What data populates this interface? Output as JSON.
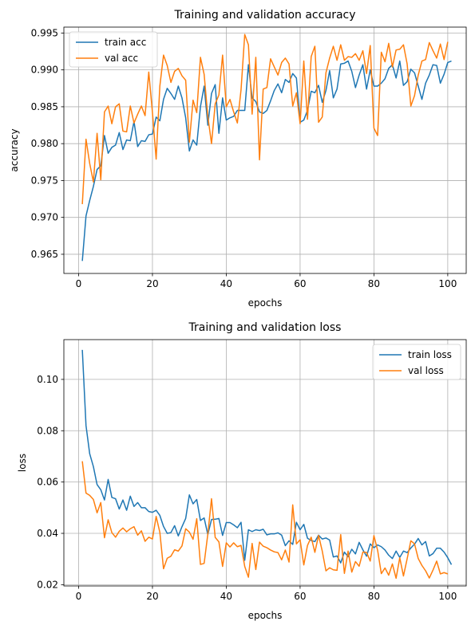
{
  "chart_data": [
    {
      "type": "line",
      "title": "Training and validation accuracy",
      "xlabel": "epochs",
      "ylabel": "accuracy",
      "xlim": [
        -4,
        105
      ],
      "ylim": [
        0.9624,
        0.9958
      ],
      "xticks": [
        0,
        20,
        40,
        60,
        80,
        100
      ],
      "yticks": [
        0.965,
        0.97,
        0.975,
        0.98,
        0.985,
        0.99,
        0.995
      ],
      "ytick_labels": [
        "0.965",
        "0.970",
        "0.975",
        "0.980",
        "0.985",
        "0.990",
        "0.995"
      ],
      "grid": true,
      "legend_position": "upper-left",
      "x_start": 1,
      "series": [
        {
          "name": "train acc",
          "color": "#1f77b4",
          "values": [
            0.9641,
            0.9702,
            0.9723,
            0.9742,
            0.9765,
            0.977,
            0.9811,
            0.9787,
            0.9795,
            0.9798,
            0.9815,
            0.9792,
            0.9805,
            0.9804,
            0.983,
            0.9796,
            0.9804,
            0.9803,
            0.9812,
            0.9813,
            0.9836,
            0.9831,
            0.986,
            0.9875,
            0.9868,
            0.986,
            0.9878,
            0.9862,
            0.9835,
            0.979,
            0.9805,
            0.9798,
            0.985,
            0.9878,
            0.9825,
            0.9868,
            0.988,
            0.9814,
            0.9862,
            0.9832,
            0.9835,
            0.9837,
            0.9845,
            0.9845,
            0.9845,
            0.9907,
            0.9862,
            0.9857,
            0.9843,
            0.9841,
            0.9845,
            0.9858,
            0.9872,
            0.9881,
            0.9869,
            0.9887,
            0.9883,
            0.9895,
            0.9889,
            0.9829,
            0.9832,
            0.9845,
            0.9871,
            0.9869,
            0.9879,
            0.9856,
            0.9872,
            0.9899,
            0.9862,
            0.9874,
            0.9908,
            0.9909,
            0.9912,
            0.9898,
            0.9876,
            0.9893,
            0.9907,
            0.9874,
            0.99,
            0.9878,
            0.9878,
            0.9882,
            0.9888,
            0.9902,
            0.9907,
            0.9889,
            0.9912,
            0.9879,
            0.9884,
            0.9901,
            0.9896,
            0.9878,
            0.986,
            0.9882,
            0.9893,
            0.9907,
            0.9906,
            0.9882,
            0.9894,
            0.991,
            0.9912
          ]
        },
        {
          "name": "val acc",
          "color": "#ff7f0e",
          "values": [
            0.9718,
            0.9806,
            0.9773,
            0.9748,
            0.9814,
            0.9751,
            0.9843,
            0.9851,
            0.9827,
            0.985,
            0.9854,
            0.9817,
            0.9816,
            0.9851,
            0.9828,
            0.984,
            0.9851,
            0.9838,
            0.9897,
            0.9842,
            0.9779,
            0.9878,
            0.992,
            0.9906,
            0.9883,
            0.9898,
            0.9902,
            0.9892,
            0.9886,
            0.9802,
            0.9859,
            0.9842,
            0.9917,
            0.9894,
            0.9837,
            0.98,
            0.9854,
            0.9866,
            0.992,
            0.985,
            0.986,
            0.9843,
            0.9828,
            0.9873,
            0.9948,
            0.9934,
            0.984,
            0.9917,
            0.9778,
            0.9874,
            0.9876,
            0.9915,
            0.9904,
            0.9893,
            0.991,
            0.9916,
            0.9908,
            0.9851,
            0.9869,
            0.9827,
            0.9912,
            0.9833,
            0.9918,
            0.9932,
            0.9829,
            0.9836,
            0.9896,
            0.9916,
            0.9932,
            0.9913,
            0.9934,
            0.9913,
            0.9918,
            0.9917,
            0.9922,
            0.9913,
            0.9926,
            0.9895,
            0.9933,
            0.9821,
            0.9811,
            0.9924,
            0.9911,
            0.9936,
            0.9904,
            0.9927,
            0.9928,
            0.9934,
            0.9908,
            0.9851,
            0.9865,
            0.9893,
            0.9912,
            0.9914,
            0.9937,
            0.9926,
            0.9916,
            0.9935,
            0.9914,
            0.9938
          ]
        }
      ]
    },
    {
      "type": "line",
      "title": "Training and validation loss",
      "xlabel": "epochs",
      "ylabel": "loss",
      "xlim": [
        -4,
        105
      ],
      "ylim": [
        0.0195,
        0.1155
      ],
      "xticks": [
        0,
        20,
        40,
        60,
        80,
        100
      ],
      "yticks": [
        0.02,
        0.04,
        0.06,
        0.08,
        0.1
      ],
      "ytick_labels": [
        "0.02",
        "0.04",
        "0.06",
        "0.08",
        "0.10"
      ],
      "grid": true,
      "legend_position": "upper-right",
      "x_start": 1,
      "series": [
        {
          "name": "train loss",
          "color": "#1f77b4",
          "values": [
            0.1115,
            0.082,
            0.071,
            0.066,
            0.059,
            0.057,
            0.053,
            0.061,
            0.054,
            0.0535,
            0.0495,
            0.053,
            0.049,
            0.0545,
            0.0505,
            0.052,
            0.05,
            0.05,
            0.0485,
            0.0482,
            0.049,
            0.047,
            0.0427,
            0.04,
            0.0403,
            0.043,
            0.039,
            0.0426,
            0.0458,
            0.055,
            0.0515,
            0.0532,
            0.045,
            0.046,
            0.0395,
            0.0454,
            0.0455,
            0.0458,
            0.0392,
            0.0442,
            0.0442,
            0.0433,
            0.0422,
            0.0443,
            0.0295,
            0.0414,
            0.0407,
            0.0414,
            0.0411,
            0.0416,
            0.0394,
            0.0398,
            0.0398,
            0.0402,
            0.0393,
            0.0352,
            0.0371,
            0.0357,
            0.0443,
            0.0414,
            0.0435,
            0.0381,
            0.0372,
            0.0368,
            0.0393,
            0.0378,
            0.0382,
            0.0374,
            0.0308,
            0.0312,
            0.0285,
            0.0327,
            0.0309,
            0.0338,
            0.032,
            0.0365,
            0.0336,
            0.0311,
            0.0359,
            0.0344,
            0.0355,
            0.0348,
            0.0335,
            0.0315,
            0.0302,
            0.0331,
            0.0306,
            0.0331,
            0.0325,
            0.0343,
            0.0358,
            0.038,
            0.0355,
            0.0368,
            0.0312,
            0.0321,
            0.0342,
            0.0342,
            0.0327,
            0.0305,
            0.0278
          ]
        },
        {
          "name": "val loss",
          "color": "#ff7f0e",
          "values": [
            0.0681,
            0.0557,
            0.0548,
            0.0532,
            0.048,
            0.052,
            0.0383,
            0.0453,
            0.0403,
            0.0385,
            0.0408,
            0.0421,
            0.0406,
            0.0418,
            0.0426,
            0.0393,
            0.041,
            0.0369,
            0.0385,
            0.0378,
            0.0466,
            0.0404,
            0.0262,
            0.0303,
            0.0311,
            0.0336,
            0.0331,
            0.0351,
            0.0418,
            0.0405,
            0.0377,
            0.0457,
            0.0279,
            0.0283,
            0.0397,
            0.0535,
            0.0384,
            0.0367,
            0.0271,
            0.0363,
            0.0347,
            0.0363,
            0.0348,
            0.0353,
            0.0271,
            0.0229,
            0.0361,
            0.0259,
            0.0366,
            0.035,
            0.0344,
            0.0335,
            0.0328,
            0.0325,
            0.0297,
            0.0335,
            0.0288,
            0.0511,
            0.0359,
            0.0375,
            0.0277,
            0.0353,
            0.0385,
            0.0326,
            0.0392,
            0.0331,
            0.0254,
            0.0266,
            0.0258,
            0.0256,
            0.0395,
            0.0244,
            0.0331,
            0.0249,
            0.029,
            0.0272,
            0.0327,
            0.0326,
            0.0292,
            0.0391,
            0.0334,
            0.0243,
            0.0265,
            0.0237,
            0.0281,
            0.0225,
            0.0305,
            0.0234,
            0.0301,
            0.0371,
            0.0359,
            0.0302,
            0.0275,
            0.0254,
            0.0226,
            0.0257,
            0.0292,
            0.0242,
            0.0247,
            0.0242
          ]
        }
      ]
    }
  ]
}
